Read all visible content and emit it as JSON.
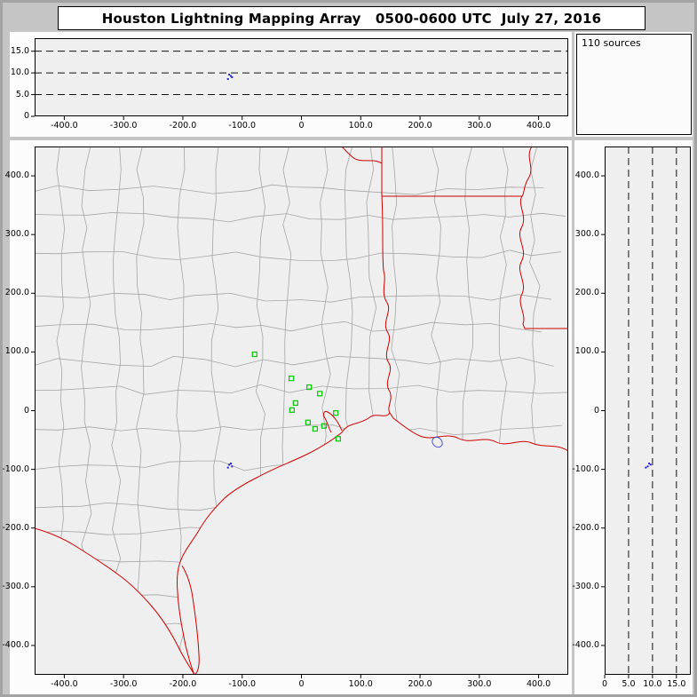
{
  "title": "Houston Lightning Mapping Array   0500-0600 UTC  July 27, 2016",
  "histogram_panel": {
    "label": "110 sources"
  },
  "colors": {
    "station": "#00c800",
    "source": "#2222cc",
    "state_border": "#cc0000",
    "county": "#a5a5a5",
    "grid": "#111111",
    "lake": "#3344cc"
  },
  "chart_data": {
    "type": "scatter",
    "title": "Houston Lightning Mapping Array   0500-0600 UTC  July 27, 2016",
    "axis_units": "km",
    "source_count": 110,
    "sources": [
      {
        "ew": -122,
        "ns": -92,
        "alt": 9.6
      },
      {
        "ew": -117,
        "ns": -95,
        "alt": 9.0
      },
      {
        "ew": -124,
        "ns": -97,
        "alt": 8.6
      },
      {
        "ew": -119,
        "ns": -90,
        "alt": 9.3
      }
    ],
    "stations": [
      [
        -79,
        96
      ],
      [
        -17,
        55
      ],
      [
        13,
        40
      ],
      [
        31,
        29
      ],
      [
        -10,
        13
      ],
      [
        -16,
        1
      ],
      [
        58,
        -4
      ],
      [
        11,
        -20
      ],
      [
        23,
        -31
      ],
      [
        38,
        -26
      ],
      [
        62,
        -48
      ]
    ],
    "panels": {
      "ew_altitude": {
        "xlim": [
          -450,
          450
        ],
        "ylim": [
          0,
          18
        ],
        "grid_y": [
          5,
          10,
          15
        ],
        "x_ticks": [
          {
            "v": -400,
            "t": "-400.0"
          },
          {
            "v": -300,
            "t": "-300.0"
          },
          {
            "v": -200,
            "t": "-200.0"
          },
          {
            "v": -100,
            "t": "-100.0"
          },
          {
            "v": 0,
            "t": "0"
          },
          {
            "v": 100,
            "t": "100.0"
          },
          {
            "v": 200,
            "t": "200.0"
          },
          {
            "v": 300,
            "t": "300.0"
          },
          {
            "v": 400,
            "t": "400.0"
          }
        ],
        "y_ticks": [
          {
            "v": 15,
            "t": "15.0"
          },
          {
            "v": 10,
            "t": "10.0"
          },
          {
            "v": 5,
            "t": "5.0"
          },
          {
            "v": 0,
            "t": "0"
          }
        ]
      },
      "plan_map": {
        "xlim": [
          -450,
          450
        ],
        "ylim": [
          -450,
          450
        ],
        "x_ticks": [
          {
            "v": -400,
            "t": "-400.0"
          },
          {
            "v": -300,
            "t": "-300.0"
          },
          {
            "v": -200,
            "t": "-200.0"
          },
          {
            "v": -100,
            "t": "-100.0"
          },
          {
            "v": 0,
            "t": "0"
          },
          {
            "v": 100,
            "t": "100.0"
          },
          {
            "v": 200,
            "t": "200.0"
          },
          {
            "v": 300,
            "t": "300.0"
          },
          {
            "v": 400,
            "t": "400.0"
          }
        ],
        "y_ticks": [
          {
            "v": 400,
            "t": "400.0"
          },
          {
            "v": 300,
            "t": "300.0"
          },
          {
            "v": 200,
            "t": "200.0"
          },
          {
            "v": 100,
            "t": "100.0"
          },
          {
            "v": 0,
            "t": "0"
          },
          {
            "v": -100,
            "t": "-100.0"
          },
          {
            "v": -200,
            "t": "-200.0"
          },
          {
            "v": -300,
            "t": "-300.0"
          },
          {
            "v": -400,
            "t": "-400.0"
          }
        ]
      },
      "ns_altitude": {
        "xlim": [
          0,
          18
        ],
        "ylim": [
          -450,
          450
        ],
        "grid_x": [
          5,
          10,
          15
        ],
        "x_ticks": [
          {
            "v": 0,
            "t": "0"
          },
          {
            "v": 5,
            "t": "5.0"
          },
          {
            "v": 10,
            "t": "10.0"
          },
          {
            "v": 15,
            "t": "15.0"
          }
        ],
        "y_ticks": [
          {
            "v": 400,
            "t": "400.0"
          },
          {
            "v": 300,
            "t": "300.0"
          },
          {
            "v": 200,
            "t": "200.0"
          },
          {
            "v": 100,
            "t": "100.0"
          },
          {
            "v": 0,
            "t": "0"
          },
          {
            "v": -100,
            "t": "-100.0"
          },
          {
            "v": -200,
            "t": "-200.0"
          },
          {
            "v": -300,
            "t": "-300.0"
          },
          {
            "v": -400,
            "t": "-400.0"
          }
        ]
      }
    }
  }
}
